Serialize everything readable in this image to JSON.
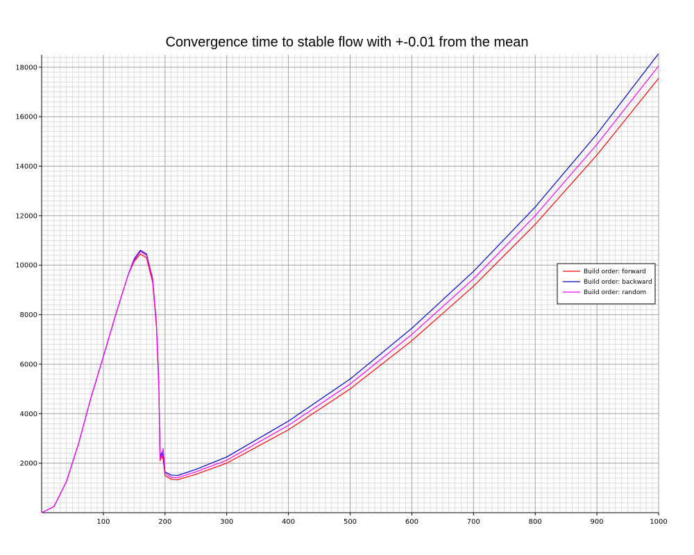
{
  "chart_data": {
    "type": "line",
    "title": "Convergence time to stable flow with +-0.01 from the mean",
    "xlabel": "",
    "ylabel": "",
    "xlim": [
      0,
      1000
    ],
    "ylim": [
      0,
      18500
    ],
    "xticks": [
      100,
      200,
      300,
      400,
      500,
      600,
      700,
      800,
      900,
      1000
    ],
    "yticks": [
      2000,
      4000,
      6000,
      8000,
      10000,
      12000,
      14000,
      16000,
      18000
    ],
    "grid": true,
    "legend_position": "right",
    "series": [
      {
        "name": "Build order: forward",
        "color": "#ff0000",
        "points": [
          [
            0,
            0
          ],
          [
            20,
            250
          ],
          [
            40,
            1250
          ],
          [
            60,
            2800
          ],
          [
            80,
            4650
          ],
          [
            100,
            6300
          ],
          [
            120,
            8000
          ],
          [
            140,
            9600
          ],
          [
            150,
            10150
          ],
          [
            160,
            10450
          ],
          [
            170,
            10300
          ],
          [
            180,
            9300
          ],
          [
            186,
            7500
          ],
          [
            190,
            5000
          ],
          [
            192,
            2100
          ],
          [
            195,
            2300
          ],
          [
            197,
            2150
          ],
          [
            200,
            1500
          ],
          [
            210,
            1350
          ],
          [
            220,
            1330
          ],
          [
            250,
            1550
          ],
          [
            300,
            2000
          ],
          [
            400,
            3350
          ],
          [
            500,
            5000
          ],
          [
            600,
            6950
          ],
          [
            700,
            9150
          ],
          [
            800,
            11650
          ],
          [
            900,
            14450
          ],
          [
            1000,
            17550
          ]
        ]
      },
      {
        "name": "Build order: backward",
        "color": "#0000cc",
        "points": [
          [
            0,
            0
          ],
          [
            20,
            250
          ],
          [
            40,
            1250
          ],
          [
            60,
            2800
          ],
          [
            80,
            4650
          ],
          [
            100,
            6300
          ],
          [
            120,
            8000
          ],
          [
            140,
            9600
          ],
          [
            150,
            10250
          ],
          [
            160,
            10600
          ],
          [
            170,
            10450
          ],
          [
            180,
            9450
          ],
          [
            186,
            7650
          ],
          [
            190,
            5200
          ],
          [
            192,
            2250
          ],
          [
            195,
            2450
          ],
          [
            197,
            2300
          ],
          [
            200,
            1650
          ],
          [
            210,
            1520
          ],
          [
            220,
            1500
          ],
          [
            250,
            1750
          ],
          [
            300,
            2250
          ],
          [
            400,
            3700
          ],
          [
            500,
            5400
          ],
          [
            600,
            7450
          ],
          [
            700,
            9750
          ],
          [
            800,
            12350
          ],
          [
            900,
            15300
          ],
          [
            1000,
            18550
          ]
        ]
      },
      {
        "name": "Build order: random",
        "color": "#ff00ff",
        "points": [
          [
            0,
            0
          ],
          [
            20,
            250
          ],
          [
            40,
            1250
          ],
          [
            60,
            2800
          ],
          [
            80,
            4650
          ],
          [
            100,
            6300
          ],
          [
            120,
            8000
          ],
          [
            140,
            9600
          ],
          [
            150,
            10200
          ],
          [
            160,
            10550
          ],
          [
            170,
            10400
          ],
          [
            180,
            9400
          ],
          [
            186,
            7600
          ],
          [
            190,
            5100
          ],
          [
            192,
            2150
          ],
          [
            195,
            2350
          ],
          [
            197,
            2600
          ],
          [
            200,
            1600
          ],
          [
            210,
            1430
          ],
          [
            220,
            1410
          ],
          [
            250,
            1650
          ],
          [
            300,
            2120
          ],
          [
            400,
            3530
          ],
          [
            500,
            5200
          ],
          [
            600,
            7200
          ],
          [
            700,
            9450
          ],
          [
            800,
            12000
          ],
          [
            900,
            14880
          ],
          [
            1000,
            18050
          ]
        ]
      }
    ]
  }
}
